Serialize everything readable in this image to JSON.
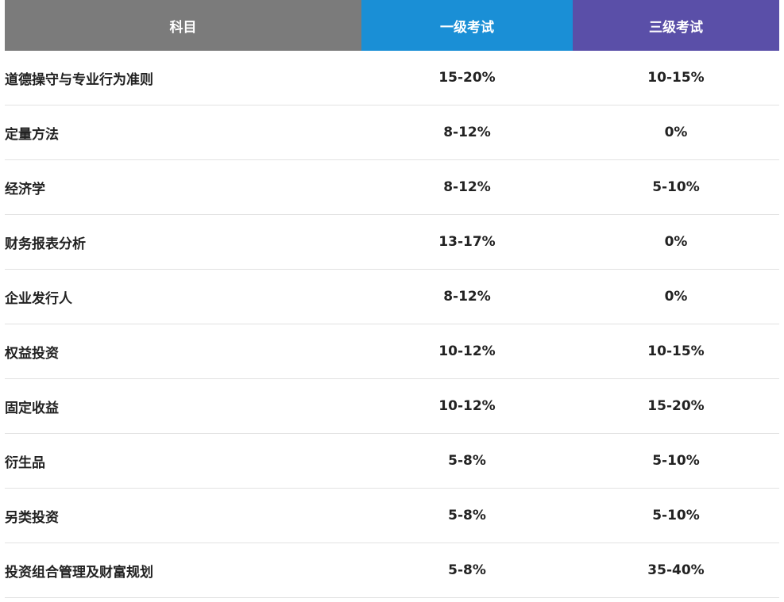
{
  "header": {
    "subject": "科目",
    "level1": "一级考试",
    "level3": "三级考试",
    "colors": {
      "subject_bg": "#7b7b7b",
      "level1_bg": "#1a8fd6",
      "level3_bg": "#5a4fa8"
    }
  },
  "rows": [
    {
      "subject": "道德操守与专业行为准则",
      "level1": "15-20%",
      "level3": "10-15%"
    },
    {
      "subject": "定量方法",
      "level1": "8-12%",
      "level3": "0%"
    },
    {
      "subject": "经济学",
      "level1": "8-12%",
      "level3": "5-10%"
    },
    {
      "subject": "财务报表分析",
      "level1": "13-17%",
      "level3": "0%"
    },
    {
      "subject": "企业发行人",
      "level1": "8-12%",
      "level3": "0%"
    },
    {
      "subject": "权益投资",
      "level1": "10-12%",
      "level3": "10-15%"
    },
    {
      "subject": "固定收益",
      "level1": "10-12%",
      "level3": "15-20%"
    },
    {
      "subject": "衍生品",
      "level1": "5-8%",
      "level3": "5-10%"
    },
    {
      "subject": "另类投资",
      "level1": "5-8%",
      "level3": "5-10%"
    },
    {
      "subject": "投资组合管理及财富规划",
      "level1": "5-8%",
      "level3": "35-40%"
    }
  ]
}
